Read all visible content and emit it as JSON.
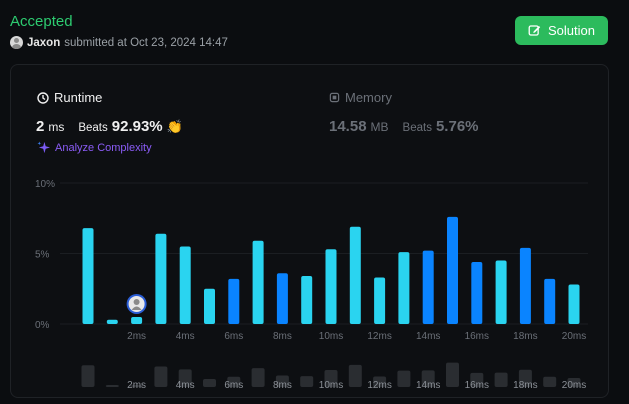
{
  "header": {
    "status": "Accepted",
    "username": "Jaxon",
    "submitted_text": "submitted at Oct 23, 2024 14:47",
    "solution_label": "Solution"
  },
  "runtime": {
    "title": "Runtime",
    "value": "2",
    "unit": "ms",
    "beats_label": "Beats",
    "beats_pct": "92.93%"
  },
  "memory": {
    "title": "Memory",
    "value": "14.58",
    "unit": "MB",
    "beats_label": "Beats",
    "beats_pct": "5.76%"
  },
  "analyze_label": "Analyze Complexity",
  "icons": {
    "runtime": "clock-icon",
    "memory": "memory-chip-icon",
    "solution": "edit-icon",
    "analyze": "sparkle-icon",
    "beats": "clap-icon"
  },
  "colors": {
    "accepted": "#2dcb70",
    "button": "#2cbb5d",
    "bar_cyan": "#2ad4f0",
    "bar_blue": "#0a84ff",
    "purple": "#8b5cf6"
  },
  "chart_data": {
    "type": "bar",
    "ylim": [
      0,
      10
    ],
    "yticks": [
      "10%",
      "5%",
      "0%"
    ],
    "ytick_values": [
      10,
      5,
      0
    ],
    "xtick_labels": [
      "2ms",
      "4ms",
      "6ms",
      "8ms",
      "10ms",
      "12ms",
      "14ms",
      "16ms",
      "18ms",
      "20ms"
    ],
    "bars": [
      {
        "x": 0,
        "value": 6.8,
        "highlight": false
      },
      {
        "x": 1,
        "value": 0.3,
        "highlight": false
      },
      {
        "x": 2,
        "value": 0.5,
        "highlight": false,
        "user": true
      },
      {
        "x": 3,
        "value": 6.4,
        "highlight": false
      },
      {
        "x": 4,
        "value": 5.5,
        "highlight": false
      },
      {
        "x": 5,
        "value": 2.5,
        "highlight": false
      },
      {
        "x": 6,
        "value": 3.2,
        "highlight": true
      },
      {
        "x": 7,
        "value": 5.9,
        "highlight": false
      },
      {
        "x": 8,
        "value": 3.6,
        "highlight": true
      },
      {
        "x": 9,
        "value": 3.4,
        "highlight": false
      },
      {
        "x": 10,
        "value": 5.3,
        "highlight": false
      },
      {
        "x": 11,
        "value": 6.9,
        "highlight": false
      },
      {
        "x": 12,
        "value": 3.3,
        "highlight": false
      },
      {
        "x": 13,
        "value": 5.1,
        "highlight": false
      },
      {
        "x": 14,
        "value": 5.2,
        "highlight": true
      },
      {
        "x": 15,
        "value": 7.6,
        "highlight": true
      },
      {
        "x": 16,
        "value": 4.4,
        "highlight": true
      },
      {
        "x": 17,
        "value": 4.5,
        "highlight": false
      },
      {
        "x": 18,
        "value": 5.4,
        "highlight": true
      },
      {
        "x": 19,
        "value": 3.2,
        "highlight": true
      },
      {
        "x": 20,
        "value": 2.8,
        "highlight": false
      }
    ]
  }
}
